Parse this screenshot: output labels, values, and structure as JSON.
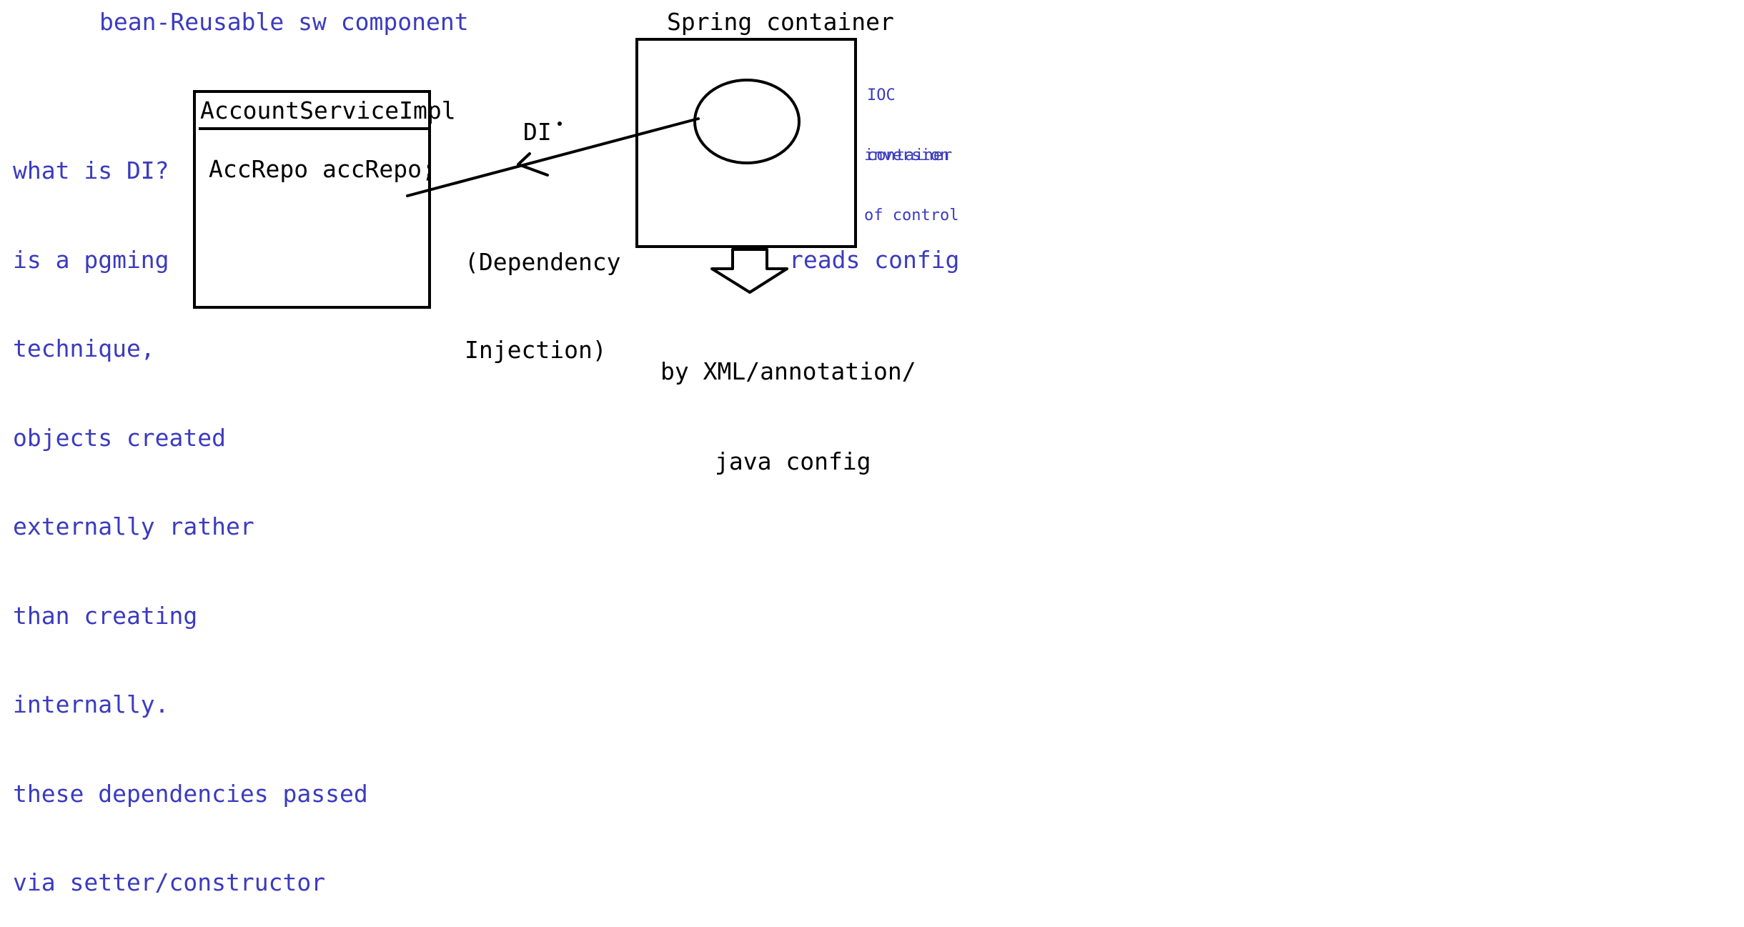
{
  "notes": {
    "bean": "bean-Reusable sw component",
    "di_explain": [
      "what is DI?",
      "is a pgming",
      "technique,",
      "objects created",
      "externally rather",
      "than creating",
      "internally.",
      "these dependencies passed",
      "via setter/constructor"
    ],
    "ioc": [
      "IOC",
      "container"
    ],
    "inversion": [
      "inversion",
      "of control"
    ],
    "reads_config": "reads config"
  },
  "diagram": {
    "class_box": {
      "title": "AccountServiceImpl",
      "field": "AccRepo accRepo;"
    },
    "container_title": "Spring container",
    "arrow_label": "DI",
    "arrow_sub": [
      "(Dependency",
      "Injection)"
    ],
    "config_source": [
      "by XML/annotation/",
      "java config"
    ]
  },
  "colors": {
    "note": "#3b3bbf",
    "ink": "#000000"
  }
}
